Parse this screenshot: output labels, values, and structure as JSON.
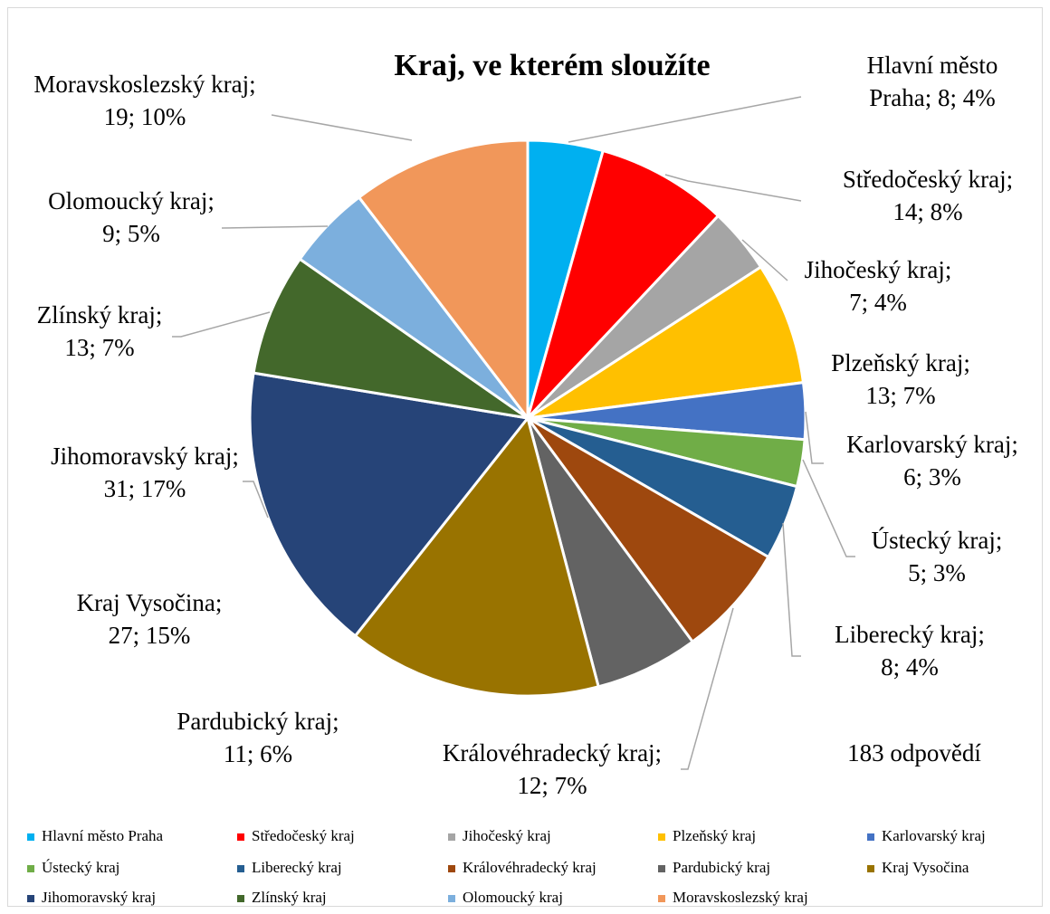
{
  "chart_data": {
    "type": "pie",
    "title": "Kraj, ve kterém sloužíte",
    "categories": [
      "Hlavní město Praha",
      "Středočeský kraj",
      "Jihočeský kraj",
      "Plzeňský kraj",
      "Karlovarský kraj",
      "Ústecký kraj",
      "Liberecký kraj",
      "Královéhradecký kraj",
      "Pardubický kraj",
      "Kraj Vysočina",
      "Jihomoravský kraj",
      "Zlínský kraj",
      "Olomoucký kraj",
      "Moravskoslezský kraj"
    ],
    "values": [
      8,
      14,
      7,
      13,
      6,
      5,
      8,
      12,
      11,
      27,
      31,
      13,
      9,
      19
    ],
    "value_labels": [
      [
        "Hlavní město",
        "Praha; 8; 4%"
      ],
      [
        "Středočeský kraj;",
        "14; 8%"
      ],
      [
        "Jihočeský kraj;",
        "7; 4%"
      ],
      [
        "Plzeňský kraj;",
        "13; 7%"
      ],
      [
        "Karlovarský kraj;",
        "6; 3%"
      ],
      [
        "Ústecký kraj;",
        "5; 3%"
      ],
      [
        "Liberecký kraj;",
        "8; 4%"
      ],
      [
        "Královéhradecký kraj;",
        "12; 7%"
      ],
      [
        "Pardubický kraj;",
        "11; 6%"
      ],
      [
        "Kraj Vysočina;",
        "27; 15%"
      ],
      [
        "Jihomoravský kraj;",
        "31; 17%"
      ],
      [
        "Zlínský kraj;",
        "13; 7%"
      ],
      [
        "Olomoucký kraj;",
        "9; 5%"
      ],
      [
        "Moravskoslezský kraj;",
        "19; 10%"
      ]
    ],
    "colors": [
      "#00b0f0",
      "#ff0000",
      "#a5a5a5",
      "#ffc000",
      "#4472c4",
      "#70ad47",
      "#255e91",
      "#9e480e",
      "#636363",
      "#997300",
      "#264478",
      "#43682b",
      "#7cafdd",
      "#f1975a"
    ],
    "annotation": "183 odpovědí",
    "legend": "bottom"
  }
}
